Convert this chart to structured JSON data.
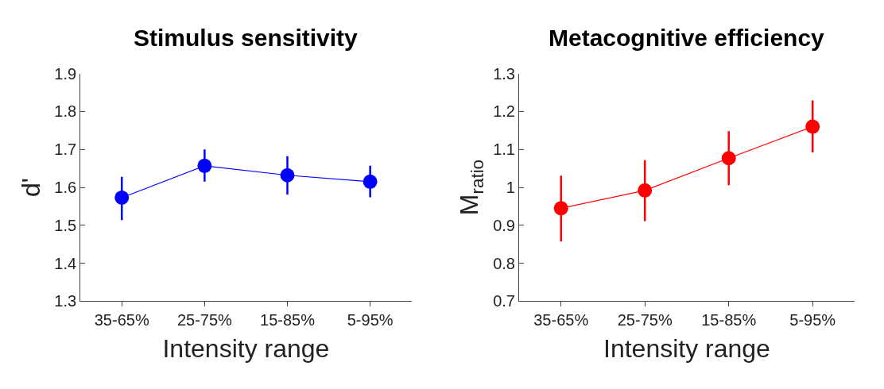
{
  "chart_data": [
    {
      "type": "line",
      "title": "Stimulus sensitivity",
      "xlabel": "Intensity range",
      "ylabel": "d'",
      "categories": [
        "35-65%",
        "25-75%",
        "15-85%",
        "5-95%"
      ],
      "series": [
        {
          "color": "#0000ff",
          "values": [
            1.573,
            1.657,
            1.632,
            1.615
          ],
          "errors": [
            [
              1.514,
              1.628
            ],
            [
              1.615,
              1.7
            ],
            [
              1.581,
              1.682
            ],
            [
              1.574,
              1.657
            ]
          ]
        }
      ],
      "ylim": [
        1.3,
        1.9
      ],
      "yticks": [
        1.3,
        1.4,
        1.5,
        1.6,
        1.7,
        1.8,
        1.9
      ],
      "marker": "circle",
      "line_style": "solid"
    },
    {
      "type": "line",
      "title": "Metacognitive efficiency",
      "xlabel": "Intensity range",
      "ylabel": "M$_{ratio}$",
      "categories": [
        "35-65%",
        "25-75%",
        "15-85%",
        "5-95%"
      ],
      "series": [
        {
          "color": "#ff0000",
          "values": [
            0.945,
            0.992,
            1.077,
            1.16
          ],
          "errors": [
            [
              0.857,
              1.031
            ],
            [
              0.911,
              1.072
            ],
            [
              1.006,
              1.148
            ],
            [
              1.092,
              1.229
            ]
          ]
        }
      ],
      "ylim": [
        0.7,
        1.3
      ],
      "yticks": [
        0.7,
        0.8,
        0.9,
        1,
        1.1,
        1.2,
        1.3
      ],
      "marker": "circle",
      "line_style": "solid"
    }
  ]
}
